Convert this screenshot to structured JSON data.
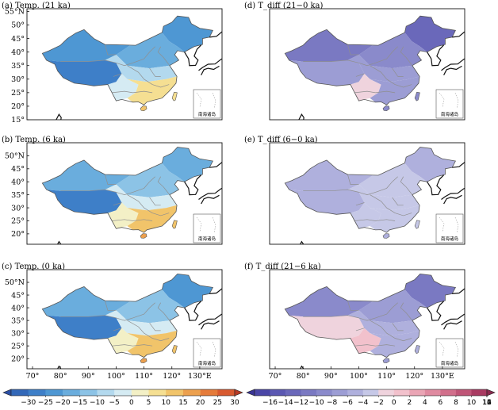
{
  "chart_data": [
    {
      "type": "heatmap",
      "panel": "a",
      "title": "(a) Temp. (21 ka)",
      "field": "temperature",
      "ylabels": [
        "15°",
        "20°",
        "25°",
        "30°",
        "35°",
        "40°",
        "45°",
        "50°",
        "55°N"
      ],
      "xlabels": [],
      "regions": [
        {
          "name": "northeast",
          "value": -20
        },
        {
          "name": "north-china",
          "value": -12
        },
        {
          "name": "northwest",
          "value": -18
        },
        {
          "name": "tibetan-plateau",
          "value": -22
        },
        {
          "name": "central",
          "value": -5
        },
        {
          "name": "southwest",
          "value": 2
        },
        {
          "name": "south",
          "value": 10
        },
        {
          "name": "hainan",
          "value": 15
        },
        {
          "name": "taiwan",
          "value": 10
        }
      ]
    },
    {
      "type": "heatmap",
      "panel": "b",
      "title": "(b) Temp. (6 ka)",
      "field": "temperature",
      "ylabels": [
        "20°",
        "25°",
        "30°",
        "35°",
        "40°",
        "45°",
        "50°N"
      ],
      "xlabels": [],
      "regions": [
        {
          "name": "northeast",
          "value": -14
        },
        {
          "name": "north-china",
          "value": -8
        },
        {
          "name": "northwest",
          "value": -12
        },
        {
          "name": "tibetan-plateau",
          "value": -22
        },
        {
          "name": "central",
          "value": 2
        },
        {
          "name": "southwest",
          "value": 8
        },
        {
          "name": "south",
          "value": 16
        },
        {
          "name": "hainan",
          "value": 22
        },
        {
          "name": "taiwan",
          "value": 18
        }
      ]
    },
    {
      "type": "heatmap",
      "panel": "c",
      "title": "(c) Temp. (0 ka)",
      "field": "temperature",
      "ylabels": [
        "20°",
        "25°",
        "30°",
        "35°",
        "40°",
        "45°",
        "50°N"
      ],
      "xlabels": [
        "70°",
        "80°",
        "90°",
        "100°",
        "110°",
        "120°",
        "130°E"
      ],
      "regions": [
        {
          "name": "northeast",
          "value": -16
        },
        {
          "name": "north-china",
          "value": -8
        },
        {
          "name": "northwest",
          "value": -12
        },
        {
          "name": "tibetan-plateau",
          "value": -22
        },
        {
          "name": "central",
          "value": 2
        },
        {
          "name": "southwest",
          "value": 8
        },
        {
          "name": "south",
          "value": 15
        },
        {
          "name": "hainan",
          "value": 22
        },
        {
          "name": "taiwan",
          "value": 17
        }
      ]
    },
    {
      "type": "heatmap",
      "panel": "d",
      "title": "(d) T_diff (21−0 ka)",
      "field": "difference",
      "ylabels": [],
      "xlabels": [],
      "regions": [
        {
          "name": "northeast",
          "value": -12
        },
        {
          "name": "north-china",
          "value": -8
        },
        {
          "name": "northwest",
          "value": -10
        },
        {
          "name": "tibetan-plateau",
          "value": -6
        },
        {
          "name": "central",
          "value": -6
        },
        {
          "name": "southwest",
          "value": 1
        },
        {
          "name": "south",
          "value": -5
        },
        {
          "name": "hainan",
          "value": -7
        },
        {
          "name": "taiwan",
          "value": -7
        }
      ]
    },
    {
      "type": "heatmap",
      "panel": "e",
      "title": "(e) T_diff (6−0 ka)",
      "field": "difference",
      "ylabels": [],
      "xlabels": [],
      "regions": [
        {
          "name": "northeast",
          "value": -3
        },
        {
          "name": "north-china",
          "value": -2
        },
        {
          "name": "northwest",
          "value": -3
        },
        {
          "name": "tibetan-plateau",
          "value": -3
        },
        {
          "name": "central",
          "value": -2
        },
        {
          "name": "southwest",
          "value": -2
        },
        {
          "name": "south",
          "value": -2
        },
        {
          "name": "hainan",
          "value": -3
        },
        {
          "name": "taiwan",
          "value": -2
        }
      ]
    },
    {
      "type": "heatmap",
      "panel": "f",
      "title": "(f) T_diff (21−6 ka)",
      "field": "difference",
      "ylabels": [],
      "xlabels": [
        "70°",
        "80°",
        "90°",
        "100°",
        "110°",
        "120°",
        "130°E"
      ],
      "regions": [
        {
          "name": "northeast",
          "value": -10
        },
        {
          "name": "north-china",
          "value": -6
        },
        {
          "name": "northwest",
          "value": -7
        },
        {
          "name": "tibetan-plateau",
          "value": 1
        },
        {
          "name": "central",
          "value": -3
        },
        {
          "name": "southwest",
          "value": 3
        },
        {
          "name": "south",
          "value": -3
        },
        {
          "name": "hainan",
          "value": -5
        },
        {
          "name": "taiwan",
          "value": -4
        }
      ]
    }
  ],
  "inset_label": "南海诸岛",
  "colorbars": {
    "temperature": {
      "ticks": [
        "−30",
        "−25",
        "−20",
        "−15",
        "−10",
        "−5",
        "0",
        "5",
        "10",
        "15",
        "20",
        "25",
        "30"
      ],
      "colors": [
        "#2b4fa6",
        "#3368b8",
        "#3e7fc8",
        "#4e97d3",
        "#6aaddd",
        "#8cc3e6",
        "#b3d9ee",
        "#d5ebf3",
        "#f3f0c6",
        "#f5df92",
        "#f1c46a",
        "#eca04e",
        "#e57b3a",
        "#d85a30",
        "#b63b26"
      ]
    },
    "difference": {
      "ticks": [
        "−16",
        "−14",
        "−12",
        "−10",
        "−8",
        "−6",
        "−4",
        "−2",
        "0",
        "2",
        "4",
        "6",
        "8",
        "10",
        "12",
        "14",
        "16"
      ],
      "colors": [
        "#3a3596",
        "#4a46a6",
        "#5b58b2",
        "#6a68ba",
        "#7a79c2",
        "#8a8acb",
        "#9c9dd4",
        "#afb0dd",
        "#c6c8e7",
        "#efd3dd",
        "#f2c1cc",
        "#eaa5b5",
        "#df8aa0",
        "#d16f8b",
        "#bf5577",
        "#a93b62",
        "#8c2a4f"
      ]
    }
  }
}
